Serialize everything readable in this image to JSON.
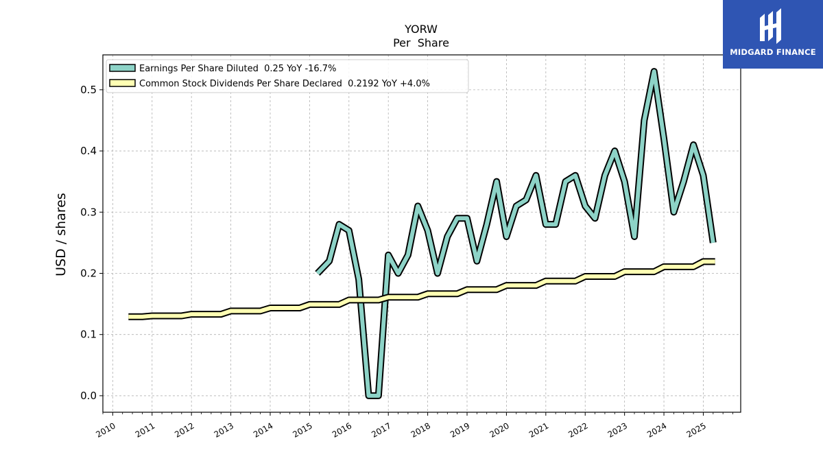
{
  "brand": {
    "name": "MIDGARD FINANCE"
  },
  "chart_data": {
    "type": "line",
    "title": "YORW",
    "subtitle": "Per  Share",
    "ylabel": "USD / shares",
    "xlabel": "",
    "ylim": [
      -0.027,
      0.557
    ],
    "xlim": [
      2009.75,
      2025.95
    ],
    "x_ticks": [
      2010,
      2011,
      2012,
      2013,
      2014,
      2015,
      2016,
      2017,
      2018,
      2019,
      2020,
      2021,
      2022,
      2023,
      2024,
      2025
    ],
    "x_tick_labels": [
      "2010",
      "2011",
      "2012",
      "2013",
      "2014",
      "2015",
      "2016",
      "2017",
      "2018",
      "2019",
      "2020",
      "2021",
      "2022",
      "2023",
      "2024",
      "2025"
    ],
    "y_ticks": [
      0.0,
      0.1,
      0.2,
      0.3,
      0.4,
      0.5
    ],
    "y_tick_labels": [
      "0.0",
      "0.1",
      "0.2",
      "0.3",
      "0.4",
      "0.5"
    ],
    "grid": true,
    "legend_position": "top-left",
    "series": [
      {
        "name": "Earnings Per Share Diluted  0.25 YoY -16.7%",
        "color": "#8dd3c7",
        "step": false,
        "points": [
          [
            2015.2,
            0.2
          ],
          [
            2015.5,
            0.22
          ],
          [
            2015.75,
            0.28
          ],
          [
            2016.0,
            0.27
          ],
          [
            2016.25,
            0.19
          ],
          [
            2016.5,
            0.0
          ],
          [
            2016.75,
            0.0
          ],
          [
            2017.0,
            0.23
          ],
          [
            2017.25,
            0.2
          ],
          [
            2017.5,
            0.23
          ],
          [
            2017.75,
            0.31
          ],
          [
            2018.0,
            0.27
          ],
          [
            2018.25,
            0.2
          ],
          [
            2018.5,
            0.26
          ],
          [
            2018.75,
            0.29
          ],
          [
            2019.0,
            0.29
          ],
          [
            2019.25,
            0.22
          ],
          [
            2019.5,
            0.28
          ],
          [
            2019.75,
            0.35
          ],
          [
            2020.0,
            0.26
          ],
          [
            2020.25,
            0.31
          ],
          [
            2020.5,
            0.32
          ],
          [
            2020.75,
            0.36
          ],
          [
            2021.0,
            0.28
          ],
          [
            2021.25,
            0.28
          ],
          [
            2021.5,
            0.35
          ],
          [
            2021.75,
            0.36
          ],
          [
            2022.0,
            0.31
          ],
          [
            2022.25,
            0.29
          ],
          [
            2022.5,
            0.36
          ],
          [
            2022.75,
            0.4
          ],
          [
            2023.0,
            0.35
          ],
          [
            2023.25,
            0.26
          ],
          [
            2023.5,
            0.45
          ],
          [
            2023.75,
            0.53
          ],
          [
            2024.0,
            0.42
          ],
          [
            2024.25,
            0.3
          ],
          [
            2024.5,
            0.35
          ],
          [
            2024.75,
            0.41
          ],
          [
            2025.0,
            0.36
          ],
          [
            2025.25,
            0.25
          ]
        ]
      },
      {
        "name": "Common Stock Dividends Per Share Declared  0.2192 YoY +4.0%",
        "color": "#ffffb3",
        "step": true,
        "points": [
          [
            2010.4,
            0.1291
          ],
          [
            2010.75,
            0.1291
          ],
          [
            2011.0,
            0.1305
          ],
          [
            2011.75,
            0.1305
          ],
          [
            2012.0,
            0.1332
          ],
          [
            2012.75,
            0.1332
          ],
          [
            2013.0,
            0.1385
          ],
          [
            2013.75,
            0.1385
          ],
          [
            2014.0,
            0.1434
          ],
          [
            2014.75,
            0.1434
          ],
          [
            2015.0,
            0.1491
          ],
          [
            2015.75,
            0.1491
          ],
          [
            2016.0,
            0.1564
          ],
          [
            2016.75,
            0.1564
          ],
          [
            2017.0,
            0.161
          ],
          [
            2017.75,
            0.161
          ],
          [
            2018.0,
            0.1666
          ],
          [
            2018.75,
            0.1666
          ],
          [
            2019.0,
            0.1734
          ],
          [
            2019.75,
            0.1734
          ],
          [
            2020.0,
            0.1802
          ],
          [
            2020.75,
            0.1802
          ],
          [
            2021.0,
            0.1874
          ],
          [
            2021.75,
            0.1874
          ],
          [
            2022.0,
            0.1949
          ],
          [
            2022.75,
            0.1949
          ],
          [
            2023.0,
            0.2027
          ],
          [
            2023.75,
            0.2027
          ],
          [
            2024.0,
            0.2108
          ],
          [
            2024.75,
            0.2108
          ],
          [
            2025.0,
            0.2192
          ],
          [
            2025.3,
            0.2192
          ]
        ]
      }
    ]
  }
}
